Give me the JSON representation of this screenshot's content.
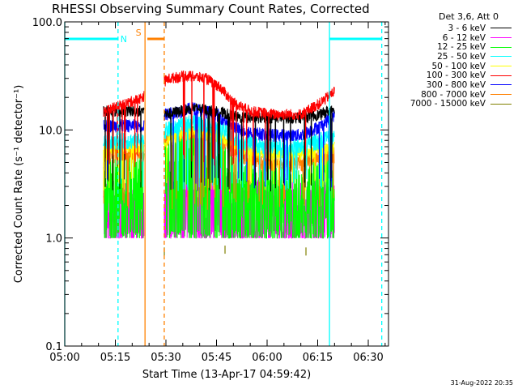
{
  "chart_data": {
    "type": "line",
    "title": "RHESSI Observing Summary Count Rates, Corrected",
    "xlabel": "Start Time (13-Apr-17 04:59:42)",
    "ylabel": "Corrected Count Rate (s⁻¹ detector⁻¹)",
    "y_scale": "log",
    "ylim": [
      0.1,
      100
    ],
    "xlim_minutes": [
      0,
      96
    ],
    "x_ticks": [
      "05:00",
      "05:15",
      "05:30",
      "05:45",
      "06:00",
      "06:15",
      "06:30"
    ],
    "y_ticks": [
      "0.1",
      "1.0",
      "10.0",
      "100.0"
    ],
    "legend_header": "Det 3,6, Att 0",
    "legend_placement": "right",
    "series": [
      {
        "name": "3 - 6 keV",
        "color": "#000000",
        "base": [
          [
            12,
            15
          ],
          [
            23,
            15
          ],
          [
            30,
            14
          ],
          [
            38,
            16
          ],
          [
            45,
            15
          ],
          [
            52,
            13
          ],
          [
            60,
            13
          ],
          [
            70,
            13
          ],
          [
            76,
            14
          ],
          [
            80,
            16
          ]
        ],
        "noise": 0.12,
        "floor": 3
      },
      {
        "name": "6 - 12 keV",
        "color": "#ff00ff",
        "base": [
          [
            12,
            2.0
          ],
          [
            23,
            2.0
          ],
          [
            30,
            3.2
          ],
          [
            40,
            3.5
          ],
          [
            45,
            3.2
          ],
          [
            52,
            2.2
          ],
          [
            60,
            2.0
          ],
          [
            70,
            2.0
          ],
          [
            80,
            2.2
          ]
        ],
        "noise": 0.7,
        "floor": 1
      },
      {
        "name": "12 - 25 keV",
        "color": "#00ff00",
        "base": [
          [
            12,
            3.5
          ],
          [
            23,
            3.8
          ],
          [
            30,
            6
          ],
          [
            38,
            7
          ],
          [
            45,
            6
          ],
          [
            52,
            3.5
          ],
          [
            60,
            3
          ],
          [
            70,
            3
          ],
          [
            80,
            4
          ]
        ],
        "noise": 0.6,
        "floor": 1
      },
      {
        "name": "25 - 50 keV",
        "color": "#00ffff",
        "base": [
          [
            12,
            8
          ],
          [
            23,
            8
          ],
          [
            30,
            10
          ],
          [
            38,
            12
          ],
          [
            45,
            11
          ],
          [
            52,
            8
          ],
          [
            60,
            7
          ],
          [
            70,
            7
          ],
          [
            80,
            9
          ]
        ],
        "noise": 0.18,
        "floor": 3
      },
      {
        "name": "50 - 100 keV",
        "color": "#ffff00",
        "base": [
          [
            12,
            7
          ],
          [
            23,
            7
          ],
          [
            30,
            8
          ],
          [
            38,
            10
          ],
          [
            45,
            9
          ],
          [
            52,
            7
          ],
          [
            60,
            6
          ],
          [
            70,
            6
          ],
          [
            80,
            7
          ]
        ],
        "noise": 0.15,
        "floor": 3
      },
      {
        "name": "100 - 300 keV",
        "color": "#ff0000",
        "base": [
          [
            12,
            15
          ],
          [
            23,
            20
          ],
          [
            27,
            26
          ],
          [
            31,
            30
          ],
          [
            36,
            32
          ],
          [
            42,
            30
          ],
          [
            46,
            25
          ],
          [
            50,
            18
          ],
          [
            55,
            15
          ],
          [
            62,
            14
          ],
          [
            70,
            14
          ],
          [
            76,
            18
          ],
          [
            80,
            23
          ]
        ],
        "noise": 0.12,
        "floor": 5
      },
      {
        "name": "300 - 800 keV",
        "color": "#0000ff",
        "base": [
          [
            12,
            11
          ],
          [
            23,
            11
          ],
          [
            30,
            14
          ],
          [
            38,
            16
          ],
          [
            45,
            14
          ],
          [
            52,
            10
          ],
          [
            60,
            9
          ],
          [
            70,
            9
          ],
          [
            76,
            11
          ],
          [
            80,
            14
          ]
        ],
        "noise": 0.14,
        "floor": 3
      },
      {
        "name": "800 - 7000 keV",
        "color": "#ff8000",
        "base": [
          [
            12,
            6
          ],
          [
            23,
            6
          ],
          [
            30,
            8.5
          ],
          [
            38,
            10
          ],
          [
            45,
            9
          ],
          [
            52,
            6
          ],
          [
            60,
            5
          ],
          [
            70,
            5
          ],
          [
            80,
            6
          ]
        ],
        "noise": 0.18,
        "floor": 2
      },
      {
        "name": "7000 - 15000 keV",
        "color": "#808000",
        "base": [],
        "noise": 0,
        "floor": 0
      }
    ],
    "data_segments": [
      [
        11.5,
        23.5
      ],
      [
        29.5,
        80
      ]
    ],
    "sparse_points": [
      {
        "series": 8,
        "x": 29.5,
        "y": 0.75
      },
      {
        "series": 8,
        "x": 47.5,
        "y": 0.78
      },
      {
        "series": 8,
        "x": 71.5,
        "y": 0.75
      }
    ],
    "vertical_lines": [
      {
        "x": 0,
        "color": "#00ffff",
        "style": "solid"
      },
      {
        "x": 15.8,
        "color": "#00ffff",
        "style": "dashed"
      },
      {
        "x": 23.8,
        "color": "#ff8000",
        "style": "solid"
      },
      {
        "x": 29.5,
        "color": "#ff8000",
        "style": "dashed"
      },
      {
        "x": 78.5,
        "color": "#00ffff",
        "style": "solid"
      },
      {
        "x": 94,
        "color": "#00ffff",
        "style": "dashed"
      }
    ],
    "top_bars": [
      {
        "label": "",
        "color": "#00ffff",
        "x": [
          0,
          15.8
        ]
      },
      {
        "label": "N",
        "color": "#00ffff",
        "x": [
          15.8,
          15.8
        ]
      },
      {
        "label": "S",
        "color": "#ff8000",
        "x": [
          24.5,
          29.5
        ]
      },
      {
        "label": "",
        "color": "#00ffff",
        "x": [
          78.5,
          94
        ]
      }
    ]
  },
  "footer": "31-Aug-2022 20:35"
}
